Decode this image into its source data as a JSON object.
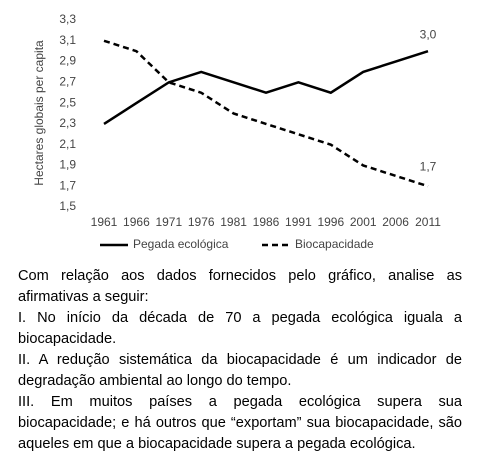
{
  "chart_data": {
    "type": "line",
    "ylabel": "Hectares globais per capita",
    "categories": [
      "1961",
      "1966",
      "1971",
      "1976",
      "1981",
      "1986",
      "1991",
      "1996",
      "2001",
      "2006",
      "2011"
    ],
    "series": [
      {
        "name": "Pegada ecológica",
        "color": "#000000",
        "dash": "solid",
        "values": [
          2.3,
          2.5,
          2.7,
          2.8,
          2.7,
          2.6,
          2.7,
          2.6,
          2.8,
          2.9,
          3.0
        ],
        "value_labels": [
          null,
          null,
          null,
          null,
          null,
          null,
          null,
          null,
          null,
          null,
          "3,0"
        ]
      },
      {
        "name": "Biocapacidade",
        "color": "#000000",
        "dash": "dashed",
        "values": [
          3.1,
          3.0,
          2.7,
          2.6,
          2.4,
          2.3,
          2.2,
          2.1,
          1.9,
          1.8,
          1.7
        ],
        "value_labels": [
          null,
          null,
          null,
          null,
          null,
          null,
          null,
          null,
          null,
          null,
          "1,7"
        ]
      }
    ],
    "ylim": [
      1.5,
      3.3
    ],
    "yticks": [
      {
        "value": 1.5,
        "label": "1,5"
      },
      {
        "value": 1.7,
        "label": "1,7"
      },
      {
        "value": 1.9,
        "label": "1,9"
      },
      {
        "value": 2.1,
        "label": "2,1"
      },
      {
        "value": 2.3,
        "label": "2,3"
      },
      {
        "value": 2.5,
        "label": "2,5"
      },
      {
        "value": 2.7,
        "label": "2,7"
      },
      {
        "value": 2.9,
        "label": "2,9"
      },
      {
        "value": 3.1,
        "label": "3,1"
      },
      {
        "value": 3.3,
        "label": "3,3"
      }
    ],
    "legend": "bottom",
    "grid": false
  },
  "document": {
    "paragraphs": [
      "Com relação aos dados fornecidos pelo gráfico, analise as afirmativas a seguir:",
      "I. No início da década de 70 a pegada ecológica iguala a biocapacidade.",
      "II. A redução sistemática da biocapacidade é um indicador de degradação ambiental ao longo do tempo.",
      "III. Em muitos países a pegada ecológica supera sua biocapacidade; e há outros que “exportam” sua biocapacidade, são aqueles em que a biocapacidade supera a pegada ecológica."
    ]
  }
}
